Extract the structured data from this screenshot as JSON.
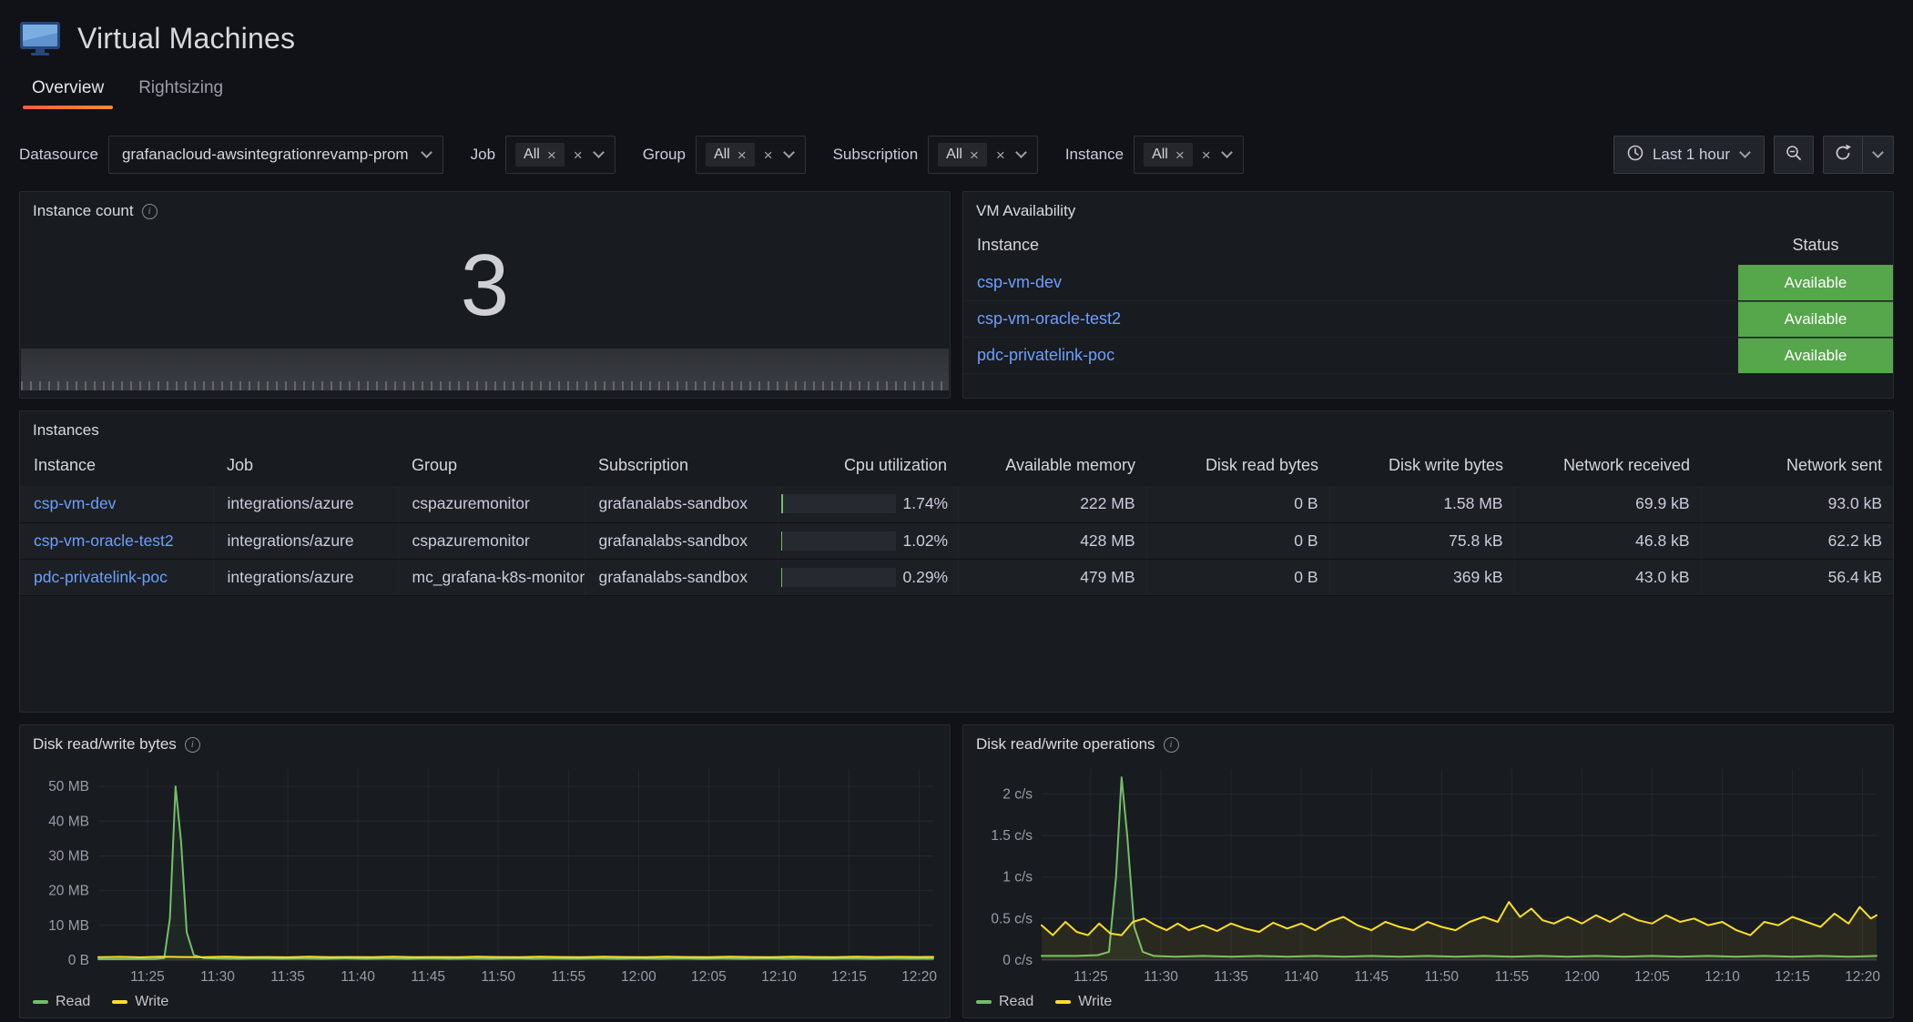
{
  "colors": {
    "green": "#73BF69",
    "yellow": "#FADE2A",
    "available_bg": "#56A64B",
    "link": "#6E9FFF",
    "orange1": "#F55F3E",
    "orange2": "#FF8833"
  },
  "icons": {
    "close": "×",
    "info": "i"
  },
  "header": {
    "title": "Virtual Machines",
    "tabs": [
      {
        "label": "Overview"
      },
      {
        "label": "Rightsizing"
      }
    ]
  },
  "datasource": {
    "label": "Datasource",
    "value": "grafanacloud-awsintegrationrevamp-prom"
  },
  "variables": [
    {
      "label": "Job",
      "value": "All"
    },
    {
      "label": "Group",
      "value": "All"
    },
    {
      "label": "Subscription",
      "value": "All"
    },
    {
      "label": "Instance",
      "value": "All"
    }
  ],
  "timebar": {
    "range_label": "Last 1 hour"
  },
  "panels": {
    "instance_count": {
      "title": "Instance count",
      "value": "3"
    },
    "vm_availability": {
      "title": "VM Availability",
      "col_instance": "Instance",
      "col_status": "Status",
      "rows": [
        {
          "instance": "csp-vm-dev",
          "status": "Available"
        },
        {
          "instance": "csp-vm-oracle-test2",
          "status": "Available"
        },
        {
          "instance": "pdc-privatelink-poc",
          "status": "Available"
        }
      ]
    },
    "instances": {
      "title": "Instances",
      "columns": [
        "Instance",
        "Job",
        "Group",
        "Subscription",
        "Cpu utilization",
        "Available memory",
        "Disk read bytes",
        "Disk write bytes",
        "Network received",
        "Network sent"
      ],
      "rows": [
        {
          "instance": "csp-vm-dev",
          "job": "integrations/azure",
          "group": "cspazuremonitor",
          "subscription": "grafanalabs-sandbox",
          "cpu_pct": 1.74,
          "cpu": "1.74%",
          "memory": "222 MB",
          "disk_read": "0 B",
          "disk_write": "1.58 MB",
          "net_received": "69.9 kB",
          "net_sent": "93.0 kB"
        },
        {
          "instance": "csp-vm-oracle-test2",
          "job": "integrations/azure",
          "group": "cspazuremonitor",
          "subscription": "grafanalabs-sandbox",
          "cpu_pct": 1.02,
          "cpu": "1.02%",
          "memory": "428 MB",
          "disk_read": "0 B",
          "disk_write": "75.8 kB",
          "net_received": "46.8 kB",
          "net_sent": "62.2 kB"
        },
        {
          "instance": "pdc-privatelink-poc",
          "job": "integrations/azure",
          "group": "mc_grafana-k8s-monitoring",
          "subscription": "grafanalabs-sandbox",
          "cpu_pct": 0.29,
          "cpu": "0.29%",
          "memory": "479 MB",
          "disk_read": "0 B",
          "disk_write": "369 kB",
          "net_received": "43.0 kB",
          "net_sent": "56.4 kB"
        }
      ]
    }
  },
  "chart_data": [
    {
      "type": "line",
      "title": "Disk read/write bytes",
      "ylabel_unit": "MB",
      "xlim": [
        21.5,
        81
      ],
      "ylim": [
        0,
        55
      ],
      "legend_position": "bottom",
      "yticks": [
        {
          "v": 0,
          "label": "0 B"
        },
        {
          "v": 10,
          "label": "10 MB"
        },
        {
          "v": 20,
          "label": "20 MB"
        },
        {
          "v": 30,
          "label": "30 MB"
        },
        {
          "v": 40,
          "label": "40 MB"
        },
        {
          "v": 50,
          "label": "50 MB"
        }
      ],
      "xticks": [
        {
          "v": 25,
          "label": "11:25"
        },
        {
          "v": 30,
          "label": "11:30"
        },
        {
          "v": 35,
          "label": "11:35"
        },
        {
          "v": 40,
          "label": "11:40"
        },
        {
          "v": 45,
          "label": "11:45"
        },
        {
          "v": 50,
          "label": "11:50"
        },
        {
          "v": 55,
          "label": "11:55"
        },
        {
          "v": 60,
          "label": "12:00"
        },
        {
          "v": 65,
          "label": "12:05"
        },
        {
          "v": 70,
          "label": "12:10"
        },
        {
          "v": 75,
          "label": "12:15"
        },
        {
          "v": 80,
          "label": "12:20"
        }
      ],
      "series": [
        {
          "name": "Read",
          "color": "#73BF69",
          "points": [
            [
              21.5,
              0.3
            ],
            [
              23,
              0.28
            ],
            [
              24.5,
              0.32
            ],
            [
              25.5,
              0.35
            ],
            [
              26.2,
              0.6
            ],
            [
              26.6,
              12
            ],
            [
              27,
              50
            ],
            [
              27.4,
              34
            ],
            [
              27.8,
              8
            ],
            [
              28.3,
              1.5
            ],
            [
              29,
              0.6
            ],
            [
              30,
              0.45
            ],
            [
              31.5,
              0.4
            ],
            [
              33,
              0.5
            ],
            [
              34.5,
              0.4
            ],
            [
              36,
              0.45
            ],
            [
              37.5,
              0.4
            ],
            [
              39,
              0.5
            ],
            [
              40.5,
              0.4
            ],
            [
              42,
              0.45
            ],
            [
              43.5,
              0.4
            ],
            [
              45,
              0.5
            ],
            [
              46.5,
              0.4
            ],
            [
              48,
              0.45
            ],
            [
              49.5,
              0.4
            ],
            [
              51,
              0.5
            ],
            [
              52.5,
              0.4
            ],
            [
              54,
              0.45
            ],
            [
              55.5,
              0.4
            ],
            [
              57,
              0.5
            ],
            [
              58.5,
              0.4
            ],
            [
              60,
              0.45
            ],
            [
              61.5,
              0.4
            ],
            [
              63,
              0.5
            ],
            [
              64.5,
              0.4
            ],
            [
              66,
              0.45
            ],
            [
              67.5,
              0.4
            ],
            [
              69,
              0.5
            ],
            [
              70.5,
              0.4
            ],
            [
              72,
              0.45
            ],
            [
              73.5,
              0.4
            ],
            [
              75,
              0.5
            ],
            [
              76.5,
              0.4
            ],
            [
              78,
              0.45
            ],
            [
              79.5,
              0.4
            ],
            [
              81,
              0.42
            ]
          ]
        },
        {
          "name": "Write",
          "color": "#FADE2A",
          "points": [
            [
              21.5,
              0.85
            ],
            [
              23,
              0.95
            ],
            [
              24.5,
              0.8
            ],
            [
              26,
              1.0
            ],
            [
              27.5,
              0.9
            ],
            [
              29,
              0.85
            ],
            [
              30.5,
              1.0
            ],
            [
              32,
              0.85
            ],
            [
              33.5,
              0.9
            ],
            [
              35,
              0.8
            ],
            [
              36.5,
              1.0
            ],
            [
              38,
              0.85
            ],
            [
              39.5,
              0.9
            ],
            [
              41,
              0.85
            ],
            [
              42.5,
              1.0
            ],
            [
              44,
              0.85
            ],
            [
              45.5,
              0.9
            ],
            [
              47,
              0.85
            ],
            [
              48.5,
              1.0
            ],
            [
              50,
              0.9
            ],
            [
              51.5,
              0.85
            ],
            [
              53,
              1.0
            ],
            [
              54.5,
              0.9
            ],
            [
              56,
              0.85
            ],
            [
              57.5,
              1.0
            ],
            [
              59,
              0.9
            ],
            [
              60.5,
              0.85
            ],
            [
              62,
              1.0
            ],
            [
              63.5,
              0.9
            ],
            [
              65,
              0.85
            ],
            [
              66.5,
              1.0
            ],
            [
              68,
              0.9
            ],
            [
              69.5,
              0.85
            ],
            [
              71,
              1.0
            ],
            [
              72.5,
              0.9
            ],
            [
              74,
              0.85
            ],
            [
              75.5,
              1.0
            ],
            [
              77,
              0.9
            ],
            [
              78.5,
              0.95
            ],
            [
              80,
              0.9
            ],
            [
              81,
              0.92
            ]
          ]
        }
      ]
    },
    {
      "type": "line",
      "title": "Disk read/write operations",
      "ylabel_unit": "c/s",
      "xlim": [
        21.5,
        81
      ],
      "ylim": [
        0,
        2.3
      ],
      "legend_position": "bottom",
      "yticks": [
        {
          "v": 0,
          "label": "0 c/s"
        },
        {
          "v": 0.5,
          "label": "0.5 c/s"
        },
        {
          "v": 1,
          "label": "1 c/s"
        },
        {
          "v": 1.5,
          "label": "1.5 c/s"
        },
        {
          "v": 2,
          "label": "2 c/s"
        }
      ],
      "xticks": [
        {
          "v": 25,
          "label": "11:25"
        },
        {
          "v": 30,
          "label": "11:30"
        },
        {
          "v": 35,
          "label": "11:35"
        },
        {
          "v": 40,
          "label": "11:40"
        },
        {
          "v": 45,
          "label": "11:45"
        },
        {
          "v": 50,
          "label": "11:50"
        },
        {
          "v": 55,
          "label": "11:55"
        },
        {
          "v": 60,
          "label": "12:00"
        },
        {
          "v": 65,
          "label": "12:05"
        },
        {
          "v": 70,
          "label": "12:10"
        },
        {
          "v": 75,
          "label": "12:15"
        },
        {
          "v": 80,
          "label": "12:20"
        }
      ],
      "series": [
        {
          "name": "Read",
          "color": "#73BF69",
          "points": [
            [
              21.5,
              0.05
            ],
            [
              24,
              0.05
            ],
            [
              25.5,
              0.06
            ],
            [
              26.3,
              0.1
            ],
            [
              26.8,
              1.0
            ],
            [
              27.2,
              2.2
            ],
            [
              27.6,
              1.5
            ],
            [
              28.1,
              0.4
            ],
            [
              28.7,
              0.1
            ],
            [
              29.5,
              0.05
            ],
            [
              31,
              0.04
            ],
            [
              33,
              0.05
            ],
            [
              35,
              0.04
            ],
            [
              37,
              0.05
            ],
            [
              39,
              0.04
            ],
            [
              41,
              0.05
            ],
            [
              43,
              0.04
            ],
            [
              45,
              0.05
            ],
            [
              47,
              0.04
            ],
            [
              49,
              0.05
            ],
            [
              51,
              0.04
            ],
            [
              53,
              0.05
            ],
            [
              55,
              0.04
            ],
            [
              57,
              0.05
            ],
            [
              59,
              0.04
            ],
            [
              61,
              0.05
            ],
            [
              63,
              0.04
            ],
            [
              65,
              0.05
            ],
            [
              67,
              0.04
            ],
            [
              69,
              0.05
            ],
            [
              71,
              0.04
            ],
            [
              73,
              0.05
            ],
            [
              75,
              0.04
            ],
            [
              77,
              0.05
            ],
            [
              79,
              0.04
            ],
            [
              81,
              0.05
            ]
          ]
        },
        {
          "name": "Write",
          "color": "#FADE2A",
          "points": [
            [
              21.5,
              0.42
            ],
            [
              22.3,
              0.3
            ],
            [
              23.2,
              0.46
            ],
            [
              24,
              0.34
            ],
            [
              24.8,
              0.3
            ],
            [
              25.6,
              0.44
            ],
            [
              26.4,
              0.32
            ],
            [
              27.2,
              0.3
            ],
            [
              28,
              0.46
            ],
            [
              28.8,
              0.5
            ],
            [
              29.6,
              0.42
            ],
            [
              30.4,
              0.36
            ],
            [
              31.2,
              0.44
            ],
            [
              32,
              0.36
            ],
            [
              33,
              0.42
            ],
            [
              34,
              0.35
            ],
            [
              35,
              0.44
            ],
            [
              36,
              0.38
            ],
            [
              37,
              0.34
            ],
            [
              38,
              0.45
            ],
            [
              39,
              0.38
            ],
            [
              40,
              0.44
            ],
            [
              41,
              0.36
            ],
            [
              42,
              0.46
            ],
            [
              43,
              0.52
            ],
            [
              44,
              0.42
            ],
            [
              45,
              0.36
            ],
            [
              46,
              0.46
            ],
            [
              47,
              0.4
            ],
            [
              48,
              0.36
            ],
            [
              49,
              0.46
            ],
            [
              50,
              0.4
            ],
            [
              51,
              0.36
            ],
            [
              52,
              0.46
            ],
            [
              53,
              0.52
            ],
            [
              54,
              0.46
            ],
            [
              54.8,
              0.7
            ],
            [
              55.6,
              0.52
            ],
            [
              56.4,
              0.62
            ],
            [
              57.2,
              0.48
            ],
            [
              58,
              0.44
            ],
            [
              59,
              0.52
            ],
            [
              60,
              0.44
            ],
            [
              61,
              0.54
            ],
            [
              62,
              0.46
            ],
            [
              63,
              0.56
            ],
            [
              64,
              0.48
            ],
            [
              65,
              0.44
            ],
            [
              66,
              0.54
            ],
            [
              67,
              0.46
            ],
            [
              68,
              0.5
            ],
            [
              69,
              0.42
            ],
            [
              70,
              0.46
            ],
            [
              71,
              0.36
            ],
            [
              72,
              0.3
            ],
            [
              73,
              0.46
            ],
            [
              74,
              0.42
            ],
            [
              75,
              0.52
            ],
            [
              76,
              0.46
            ],
            [
              77,
              0.4
            ],
            [
              78,
              0.56
            ],
            [
              79,
              0.44
            ],
            [
              79.8,
              0.64
            ],
            [
              80.6,
              0.5
            ],
            [
              81,
              0.54
            ]
          ]
        }
      ]
    }
  ]
}
